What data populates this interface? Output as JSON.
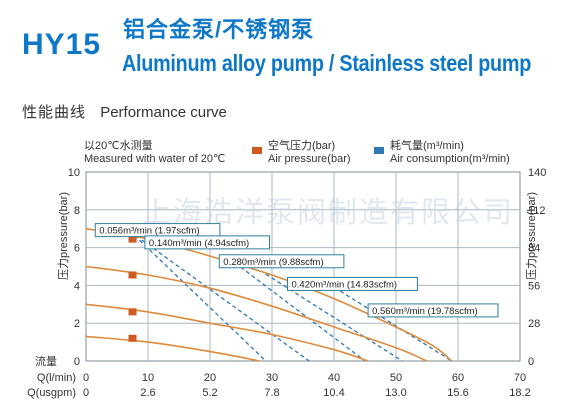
{
  "header": {
    "model": "HY15",
    "title_cn": "铝合金泵/不锈钢泵",
    "title_en": "Aluminum alloy pump / Stainless steel pump"
  },
  "section": {
    "title_cn": "性能曲线",
    "title_en": "Performance curve"
  },
  "legend": {
    "water_note_cn": "以20℃水测量",
    "water_note_en": "Measured with water of 20℃",
    "air_pressure_cn": "空气压力(bar)",
    "air_pressure_en": "Air pressure(bar)",
    "air_consumption_cn": "耗气量(m³/min)",
    "air_consumption_en": "Air consumption(m³/min)"
  },
  "watermark": "上海浩洋泵阀制造有限公司",
  "colors": {
    "brand_blue": "#0e78c8",
    "pressure_curve": "#e08a3c",
    "pressure_marker": "#cf5a22",
    "consumption_line": "#2f78b6",
    "label_border": "#2e7f9c",
    "grid": "#a8b8c4"
  },
  "chart_data": {
    "type": "line",
    "x": {
      "label_lpm": "Q(l/min)",
      "label_usgpm": "Q(usgpm)",
      "range": [
        0,
        70
      ],
      "ticks_lpm": [
        "0",
        "10",
        "20",
        "30",
        "40",
        "50",
        "60",
        "70"
      ],
      "ticks_usgpm": [
        "0",
        "2.6",
        "5.2",
        "7.8",
        "10.4",
        "13.0",
        "15.6",
        "18.2"
      ]
    },
    "y_left": {
      "label": "压力pressure(bar)",
      "range": [
        0,
        10
      ],
      "ticks": [
        "0",
        "2",
        "4",
        "6",
        "8",
        "10"
      ],
      "zero_label": "流量"
    },
    "y_right": {
      "label": "压力pressure(bar)",
      "range": [
        0,
        140
      ],
      "ticks": [
        "0",
        "28",
        "56",
        "84",
        "112",
        "140"
      ]
    },
    "grid": true,
    "pressure_curves": [
      {
        "pressure_bar": 1,
        "points": [
          [
            0,
            1.3
          ],
          [
            10,
            1.0
          ],
          [
            20,
            0.5
          ],
          [
            28,
            0.0
          ]
        ]
      },
      {
        "pressure_bar": 3,
        "points": [
          [
            0,
            3.0
          ],
          [
            10,
            2.6
          ],
          [
            20,
            2.0
          ],
          [
            30,
            1.4
          ],
          [
            40,
            0.6
          ],
          [
            45.5,
            0.0
          ]
        ]
      },
      {
        "pressure_bar": 5,
        "points": [
          [
            0,
            5.0
          ],
          [
            10,
            4.55
          ],
          [
            20,
            3.85
          ],
          [
            30,
            2.9
          ],
          [
            40,
            1.8
          ],
          [
            50,
            0.7
          ],
          [
            55,
            0.0
          ]
        ]
      },
      {
        "pressure_bar": 7,
        "points": [
          [
            0,
            7.0
          ],
          [
            10,
            6.45
          ],
          [
            20,
            5.55
          ],
          [
            30,
            4.55
          ],
          [
            40,
            3.3
          ],
          [
            50,
            1.8
          ],
          [
            56,
            0.8
          ],
          [
            59,
            0.0
          ]
        ]
      }
    ],
    "pressure_markers": [
      {
        "x": 7.5,
        "y": 1.2
      },
      {
        "x": 7.5,
        "y": 2.6
      },
      {
        "x": 7.5,
        "y": 4.55
      },
      {
        "x": 7.5,
        "y": 6.45
      }
    ],
    "air_consumption_lines": [
      {
        "label": "0.056m³/min (1.97scfm)",
        "points": [
          [
            7,
            6.9
          ],
          [
            29,
            0.0
          ]
        ],
        "label_at": [
          1.5,
          6.9
        ]
      },
      {
        "label": "0.140m³/min (4.94scfm)",
        "points": [
          [
            9,
            6.4
          ],
          [
            36,
            0.0
          ]
        ],
        "label_at": [
          9.5,
          6.25
        ]
      },
      {
        "label": "0.280m³/min (9.88scfm)",
        "points": [
          [
            24,
            5.2
          ],
          [
            45,
            0.0
          ]
        ],
        "label_at": [
          21.5,
          5.25
        ]
      },
      {
        "label": "0.420m³/min (14.83scfm)",
        "points": [
          [
            29,
            4.6
          ],
          [
            51,
            0.0
          ]
        ],
        "label_at": [
          32.5,
          4.05
        ]
      },
      {
        "label": "0.560m³/min (19.78scfm)",
        "points": [
          [
            41,
            3.7
          ],
          [
            59,
            0.0
          ]
        ],
        "label_at": [
          45.5,
          2.65
        ]
      }
    ]
  }
}
